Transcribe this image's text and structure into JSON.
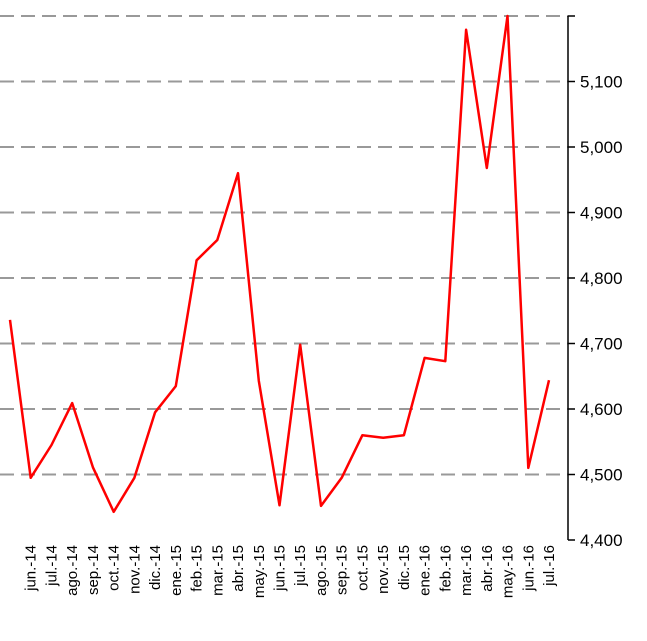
{
  "chart_data": {
    "type": "line",
    "categories": [
      null,
      "jun.-14",
      "jul.-14",
      "ago.-14",
      "sep.-14",
      "oct.-14",
      "nov.-14",
      "dic.-14",
      "ene.-15",
      "feb.-15",
      "mar.-15",
      "abr.-15",
      "may.-15",
      "jun.-15",
      "jul.-15",
      "ago.-15",
      "sep.-15",
      "oct.-15",
      "nov.-15",
      "dic.-15",
      "ene.-16",
      "feb.-16",
      "mar.-16",
      "abr.-16",
      "may.-16",
      "jun.-16",
      "jul.-16"
    ],
    "series": [
      {
        "color": "#ff0000",
        "values": [
          4736,
          4495,
          4545,
          4609,
          4511,
          4443,
          4495,
          4595,
          4635,
          4827,
          4858,
          4960,
          4643,
          4453,
          4698,
          4452,
          4495,
          4560,
          4556,
          4560,
          4678,
          4673,
          5179,
          4968,
          5200,
          4510,
          4644
        ]
      }
    ],
    "ylim": [
      4400,
      5200
    ],
    "yticks": [
      {
        "value": 4400,
        "label": "4,400"
      },
      {
        "value": 4500,
        "label": "4,500"
      },
      {
        "value": 4600,
        "label": "4,600"
      },
      {
        "value": 4700,
        "label": "4,700"
      },
      {
        "value": 4800,
        "label": "4,800"
      },
      {
        "value": 4900,
        "label": "4,900"
      },
      {
        "value": 5000,
        "label": "5,000"
      },
      {
        "value": 5100,
        "label": "5,100"
      }
    ],
    "grid": true
  }
}
